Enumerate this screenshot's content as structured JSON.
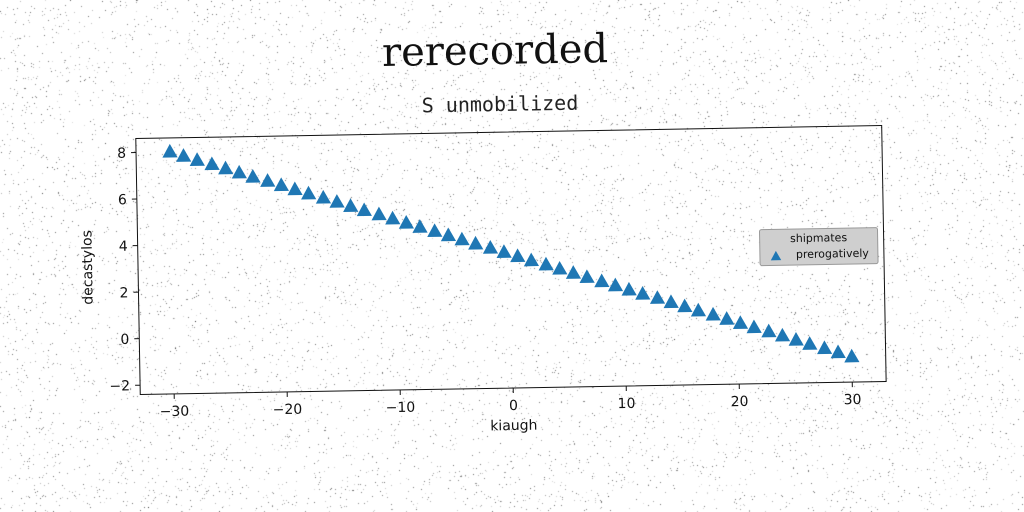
{
  "chart_data": {
    "type": "scatter",
    "title": "rerecorded",
    "subtitle": "S unmobilized",
    "xlabel": "kiaugh",
    "ylabel": "decastylos",
    "xlim": [
      -33,
      33
    ],
    "ylim": [
      -2.4,
      8.6
    ],
    "xticks": [
      -30,
      -20,
      -10,
      0,
      10,
      20,
      30
    ],
    "xtick_labels": [
      "−30",
      "−20",
      "−10",
      "0",
      "10",
      "20",
      "30"
    ],
    "yticks": [
      -2,
      0,
      2,
      4,
      6,
      8
    ],
    "ytick_labels": [
      "−2",
      "0",
      "2",
      "4",
      "6",
      "8"
    ],
    "grid": false,
    "legend": {
      "title": "shipmates",
      "placement": "center-right",
      "entries": [
        "prerogatively"
      ]
    },
    "series": [
      {
        "name": "prerogatively",
        "marker": "triangle-up",
        "color": "#1f77b4",
        "x": [
          -30,
          -28.8,
          -27.6,
          -26.3,
          -25.1,
          -23.9,
          -22.7,
          -21.4,
          -20.2,
          -19,
          -17.8,
          -16.5,
          -15.3,
          -14.1,
          -12.9,
          -11.6,
          -10.4,
          -9.2,
          -8,
          -6.7,
          -5.5,
          -4.3,
          -3.1,
          -1.8,
          -0.6,
          0.6,
          1.8,
          3.1,
          4.3,
          5.5,
          6.7,
          8,
          9.2,
          10.4,
          11.6,
          12.9,
          14.1,
          15.3,
          16.5,
          17.8,
          19,
          20.2,
          21.4,
          22.7,
          23.9,
          25.1,
          26.3,
          27.6,
          28.8,
          30
        ],
        "y": [
          8,
          7.81,
          7.62,
          7.43,
          7.24,
          7.05,
          6.86,
          6.67,
          6.48,
          6.29,
          6.1,
          5.91,
          5.72,
          5.53,
          5.34,
          5.15,
          4.96,
          4.77,
          4.58,
          4.39,
          4.2,
          4.01,
          3.82,
          3.63,
          3.44,
          3.25,
          3.06,
          2.87,
          2.68,
          2.49,
          2.3,
          2.11,
          1.92,
          1.73,
          1.54,
          1.35,
          1.16,
          0.97,
          0.78,
          0.59,
          0.4,
          0.21,
          0.02,
          -0.17,
          -0.36,
          -0.55,
          -0.74,
          -0.93,
          -1.12,
          -1.31
        ]
      }
    ]
  }
}
